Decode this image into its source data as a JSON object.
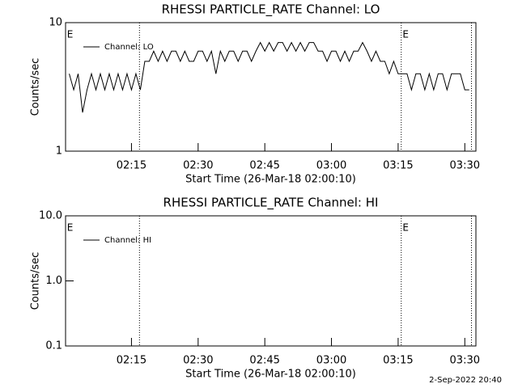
{
  "chart_data": [
    {
      "type": "line",
      "title": "RHESSI PARTICLE_RATE Channel: LO",
      "xlabel": "Start Time (26-Mar-18 02:00:10)",
      "ylabel": "Counts/sec",
      "log_y": true,
      "legend": "upper-left",
      "color": "#000000",
      "xlim": [
        0.17,
        92.5
      ],
      "ylim": [
        1,
        10
      ],
      "xticks": [
        {
          "value": 15,
          "label": "02:15"
        },
        {
          "value": 30,
          "label": "02:30"
        },
        {
          "value": 45,
          "label": "02:45"
        },
        {
          "value": 60,
          "label": "03:00"
        },
        {
          "value": 75,
          "label": "03:15"
        },
        {
          "value": 90,
          "label": "03:30"
        }
      ],
      "yticks": [
        1,
        10
      ],
      "vlines": [
        16.8,
        75.7,
        91.5
      ],
      "flags": [
        {
          "x": 0.5,
          "label": "E"
        },
        {
          "x": 76,
          "label": "E"
        }
      ],
      "x": [
        1,
        2,
        3,
        4,
        5,
        6,
        7,
        8,
        9,
        10,
        11,
        12,
        13,
        14,
        15,
        16,
        17,
        18,
        19,
        20,
        21,
        22,
        23,
        24,
        25,
        26,
        27,
        28,
        29,
        30,
        31,
        32,
        33,
        34,
        35,
        36,
        37,
        38,
        39,
        40,
        41,
        42,
        43,
        44,
        45,
        46,
        47,
        48,
        49,
        50,
        51,
        52,
        53,
        54,
        55,
        56,
        57,
        58,
        59,
        60,
        61,
        62,
        63,
        64,
        65,
        66,
        67,
        68,
        69,
        70,
        71,
        72,
        73,
        74,
        75,
        76,
        77,
        78,
        79,
        80,
        81,
        82,
        83,
        84,
        85,
        86,
        87,
        88,
        89,
        90,
        91
      ],
      "series": [
        {
          "name": "Channel: LO",
          "color": "#000000",
          "values": [
            4,
            3,
            4,
            2,
            3,
            4,
            3,
            4,
            3,
            4,
            3,
            4,
            3,
            4,
            3,
            4,
            3,
            5,
            5,
            6,
            5,
            6,
            5,
            6,
            6,
            5,
            6,
            5,
            5,
            6,
            6,
            5,
            6,
            4,
            6,
            5,
            6,
            6,
            5,
            6,
            6,
            5,
            6,
            7,
            6,
            7,
            6,
            7,
            7,
            6,
            7,
            6,
            7,
            6,
            7,
            7,
            6,
            6,
            5,
            6,
            6,
            5,
            6,
            5,
            6,
            6,
            7,
            6,
            5,
            6,
            5,
            5,
            4,
            5,
            4,
            4,
            4,
            3,
            4,
            4,
            3,
            4,
            3,
            4,
            4,
            3,
            4,
            4,
            4,
            3,
            3
          ]
        }
      ]
    },
    {
      "type": "line",
      "title": "RHESSI PARTICLE_RATE Channel: HI",
      "xlabel": "Start Time (26-Mar-18 02:00:10)",
      "ylabel": "Counts/sec",
      "log_y": true,
      "legend": "upper-left",
      "color": "#000000",
      "xlim": [
        0.17,
        92.5
      ],
      "ylim": [
        0.1,
        10
      ],
      "xticks": [
        {
          "value": 15,
          "label": "02:15"
        },
        {
          "value": 30,
          "label": "02:30"
        },
        {
          "value": 45,
          "label": "02:45"
        },
        {
          "value": 60,
          "label": "03:00"
        },
        {
          "value": 75,
          "label": "03:15"
        },
        {
          "value": 90,
          "label": "03:30"
        }
      ],
      "yticks": [
        0.1,
        {
          "value": 1,
          "label": "1.0"
        },
        {
          "value": 10,
          "label": "10.0"
        }
      ],
      "vlines": [
        16.8,
        75.7,
        91.5
      ],
      "flags": [
        {
          "x": 0.5,
          "label": "E"
        },
        {
          "x": 76,
          "label": "E"
        }
      ],
      "x": [],
      "series": [
        {
          "name": "Channel: HI",
          "color": "#000000",
          "values": []
        }
      ]
    }
  ],
  "footer": "2-Sep-2022 20:40"
}
